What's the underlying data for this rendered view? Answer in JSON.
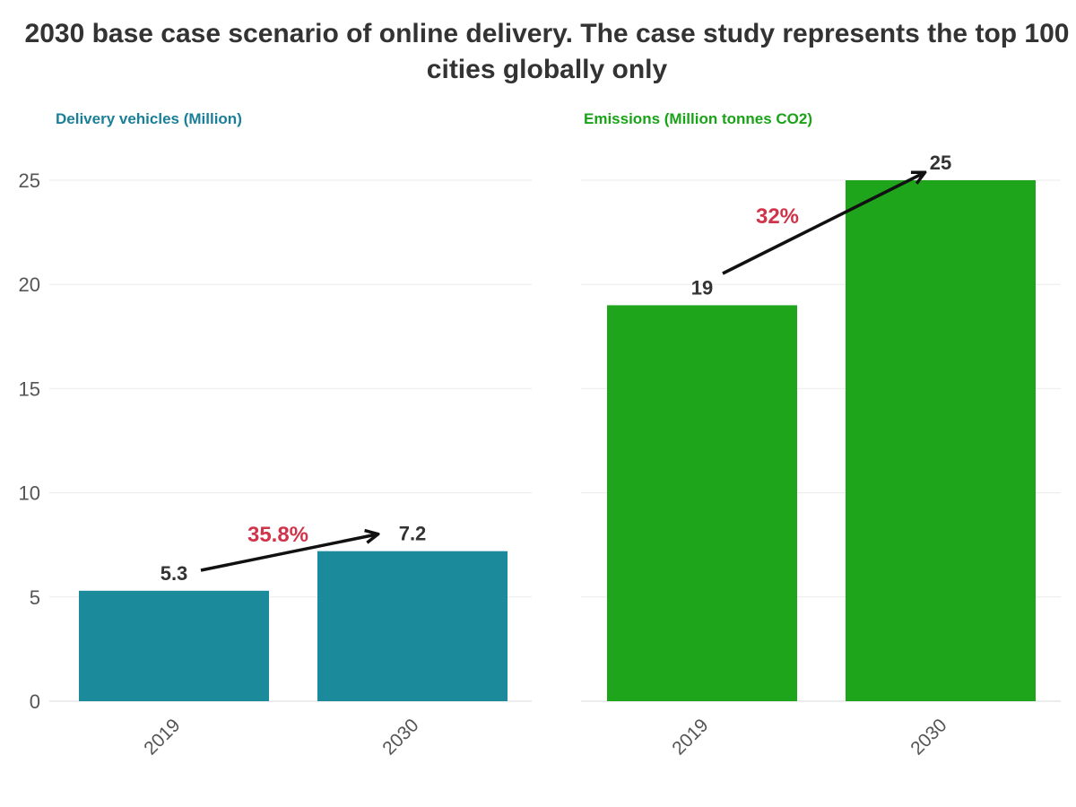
{
  "title": "2030 base case scenario of online delivery. The case study represents the top 100 cities globally only",
  "chart_data": [
    {
      "type": "bar",
      "title": "Delivery vehicles (Million)",
      "categories": [
        "2019",
        "2030"
      ],
      "values": [
        5.3,
        7.2
      ],
      "value_labels": [
        "5.3",
        "7.2"
      ],
      "ylim": [
        0,
        26
      ],
      "yticks": [
        0,
        5,
        10,
        15,
        20,
        25
      ],
      "color": "#1b8a9a",
      "title_color": "#1b7f99",
      "annotation": "35.8%",
      "annotation_color": "#d0344b",
      "grid": true
    },
    {
      "type": "bar",
      "title": "Emissions (Million tonnes CO2)",
      "categories": [
        "2019",
        "2030"
      ],
      "values": [
        19,
        25
      ],
      "value_labels": [
        "19",
        "25"
      ],
      "ylim": [
        0,
        26
      ],
      "yticks": [
        0,
        5,
        10,
        15,
        20,
        25
      ],
      "color": "#1ea51b",
      "title_color": "#1aa318",
      "annotation": "32%",
      "annotation_color": "#d0344b",
      "grid": true
    }
  ]
}
